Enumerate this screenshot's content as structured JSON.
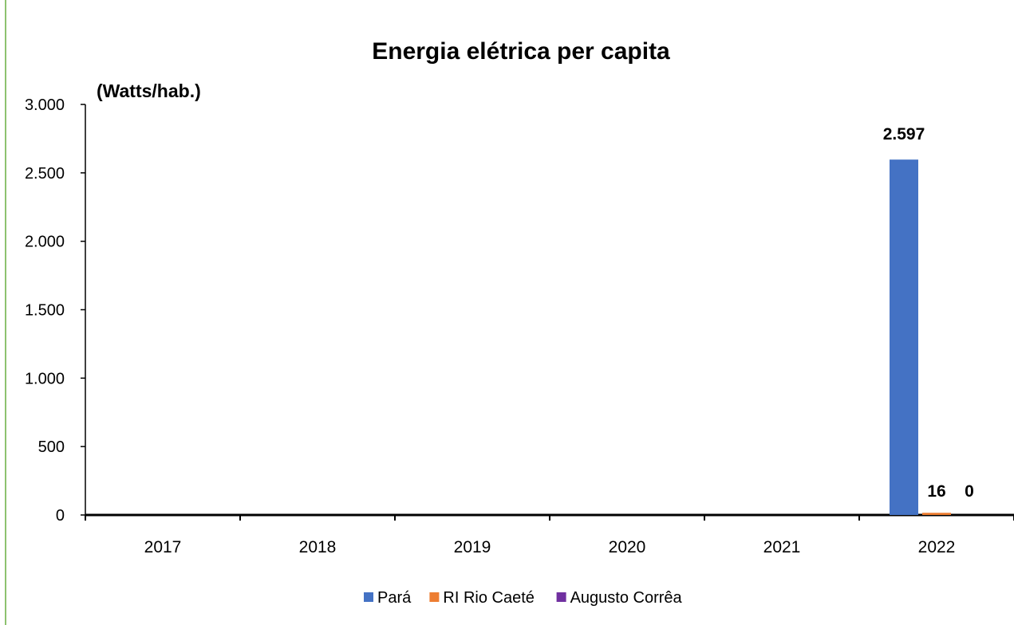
{
  "chart_data": {
    "type": "bar",
    "title": "Energia elétrica per capita",
    "unit_label": "(Watts/hab.)",
    "categories": [
      "2017",
      "2018",
      "2019",
      "2020",
      "2021",
      "2022"
    ],
    "ylim": [
      0,
      3000
    ],
    "yticks": [
      0,
      500,
      1000,
      1500,
      2000,
      2500,
      3000
    ],
    "ytick_labels": [
      "0",
      "500",
      "1.000",
      "1.500",
      "2.000",
      "2.500",
      "3.000"
    ],
    "grid": false,
    "legend_position": "bottom",
    "series": [
      {
        "name": "Pará",
        "color": "#4472c4",
        "values": [
          null,
          null,
          null,
          null,
          null,
          2597
        ],
        "labels": [
          "",
          "",
          "",
          "",
          "",
          "2.597"
        ]
      },
      {
        "name": "RI Rio Caeté",
        "color": "#ed7d31",
        "values": [
          null,
          null,
          null,
          null,
          null,
          16
        ],
        "labels": [
          "",
          "",
          "",
          "",
          "",
          "16"
        ]
      },
      {
        "name": "Augusto Corrêa",
        "color": "#7030a0",
        "values": [
          null,
          null,
          null,
          null,
          null,
          0
        ],
        "labels": [
          "",
          "",
          "",
          "",
          "",
          "0"
        ]
      }
    ]
  }
}
